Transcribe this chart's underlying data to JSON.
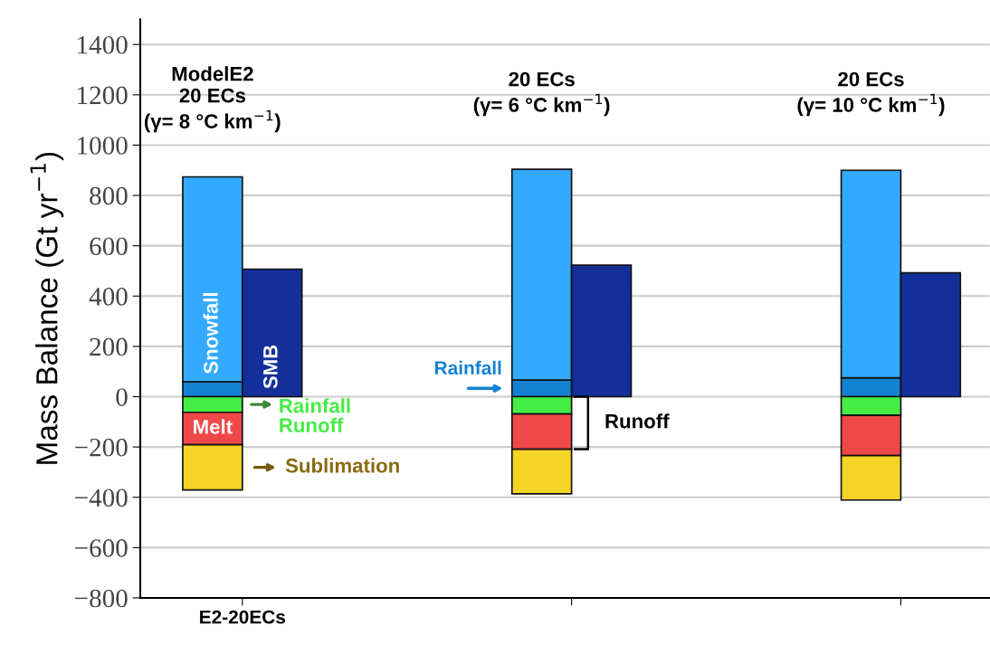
{
  "chart_data": {
    "type": "bar",
    "ylabel": "Mass Balance (Gt yr$^{−1}$)",
    "categories": [
      "E2-20ECs",
      null,
      null
    ],
    "series": [
      {
        "name": "Rainfall",
        "color": "#1482d2",
        "values": [
          59,
          66,
          75
        ],
        "base": [
          0,
          0,
          0
        ]
      },
      {
        "name": "Snowfall",
        "color": "#33aaff",
        "values": [
          815,
          838,
          825
        ],
        "base": [
          59,
          66,
          75
        ]
      },
      {
        "name": "Rainfall\nRunoff",
        "color": "#44ee44",
        "values": [
          -62,
          -69,
          -74
        ],
        "base": [
          0,
          0,
          0
        ]
      },
      {
        "name": "Melt",
        "color": "#f04848",
        "values": [
          -129,
          -140,
          -160
        ],
        "base": [
          -62,
          -69,
          -74
        ]
      },
      {
        "name": "Sublimation",
        "color": "#f5d327",
        "values": [
          -180,
          -177,
          -177
        ],
        "base": [
          -191,
          -209,
          -234
        ]
      },
      {
        "name": "SMB",
        "color": "#13309a",
        "values": [
          507,
          523,
          492
        ]
      }
    ],
    "ylim": [
      -800,
      1500
    ],
    "yticks": [
      -800,
      -600,
      -400,
      -200,
      0,
      200,
      400,
      600,
      800,
      1000,
      1200,
      1400
    ],
    "grid": "y",
    "annotations": [
      "ModelE2\n20 ECs\n(γ= 8 °C km$^{−1}$)",
      "20 ECs\n(γ= 6 °C km$^{−1}$)",
      "20 ECs\n(γ= 10 °C km$^{−1}$)",
      "Runoff"
    ]
  }
}
